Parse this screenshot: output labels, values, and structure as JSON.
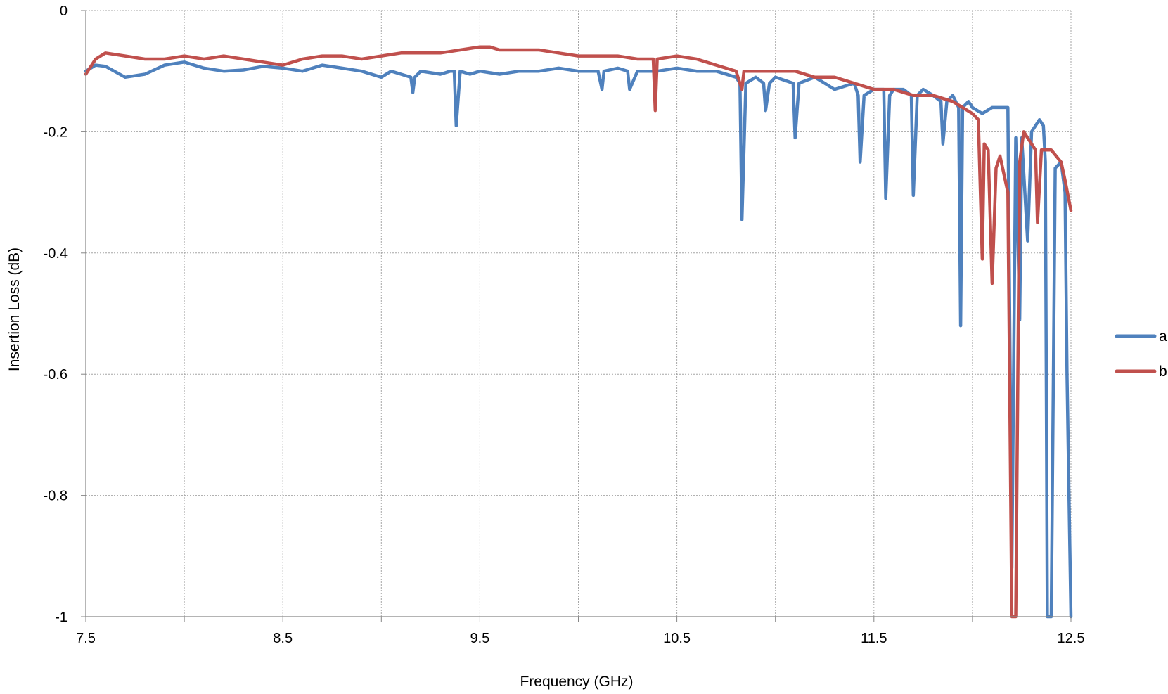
{
  "chart_data": {
    "type": "line",
    "title": "",
    "xlabel": "Frequency (GHz)",
    "ylabel": "Insertion Loss (dB)",
    "xlim": [
      7.5,
      12.5
    ],
    "ylim": [
      -1,
      0
    ],
    "x_ticks": [
      7.5,
      8.0,
      8.5,
      9.0,
      9.5,
      10.0,
      10.5,
      11.0,
      11.5,
      12.0,
      12.5
    ],
    "x_tick_labels": [
      "7.5",
      "",
      "8.5",
      "",
      "9.5",
      "",
      "10.5",
      "",
      "11.5",
      "",
      "12.5"
    ],
    "y_ticks": [
      0,
      -0.2,
      -0.4,
      -0.6,
      -0.8,
      -1
    ],
    "y_tick_labels": [
      "0",
      "-0.2",
      "-0.4",
      "-0.6",
      "-0.8",
      "-1"
    ],
    "grid": true,
    "legend_position": "right",
    "series": [
      {
        "name": "a",
        "color": "#4f81bd",
        "x": [
          7.5,
          7.55,
          7.6,
          7.7,
          7.8,
          7.9,
          8.0,
          8.1,
          8.2,
          8.3,
          8.4,
          8.5,
          8.6,
          8.7,
          8.8,
          8.9,
          9.0,
          9.05,
          9.1,
          9.15,
          9.16,
          9.17,
          9.2,
          9.3,
          9.35,
          9.37,
          9.38,
          9.4,
          9.45,
          9.5,
          9.6,
          9.7,
          9.8,
          9.9,
          10.0,
          10.1,
          10.12,
          10.13,
          10.2,
          10.25,
          10.26,
          10.3,
          10.4,
          10.5,
          10.6,
          10.7,
          10.8,
          10.82,
          10.83,
          10.85,
          10.9,
          10.94,
          10.95,
          10.97,
          11.0,
          11.09,
          11.1,
          11.12,
          11.2,
          11.25,
          11.3,
          11.4,
          11.42,
          11.43,
          11.45,
          11.5,
          11.55,
          11.56,
          11.58,
          11.6,
          11.65,
          11.69,
          11.7,
          11.72,
          11.75,
          11.8,
          11.84,
          11.85,
          11.87,
          11.9,
          11.93,
          11.94,
          11.95,
          11.98,
          12.0,
          12.05,
          12.1,
          12.15,
          12.18,
          12.2,
          12.22,
          12.24,
          12.25,
          12.28,
          12.3,
          12.34,
          12.36,
          12.37,
          12.38,
          12.4,
          12.42,
          12.45,
          12.47,
          12.48,
          12.5
        ],
        "y": [
          -0.1,
          -0.09,
          -0.092,
          -0.11,
          -0.105,
          -0.09,
          -0.085,
          -0.095,
          -0.1,
          -0.098,
          -0.092,
          -0.095,
          -0.1,
          -0.09,
          -0.095,
          -0.1,
          -0.11,
          -0.1,
          -0.105,
          -0.11,
          -0.135,
          -0.11,
          -0.1,
          -0.105,
          -0.1,
          -0.1,
          -0.19,
          -0.1,
          -0.105,
          -0.1,
          -0.105,
          -0.1,
          -0.1,
          -0.095,
          -0.1,
          -0.1,
          -0.13,
          -0.1,
          -0.095,
          -0.1,
          -0.13,
          -0.1,
          -0.1,
          -0.095,
          -0.1,
          -0.1,
          -0.11,
          -0.12,
          -0.345,
          -0.12,
          -0.11,
          -0.12,
          -0.165,
          -0.12,
          -0.11,
          -0.12,
          -0.21,
          -0.12,
          -0.11,
          -0.12,
          -0.13,
          -0.12,
          -0.14,
          -0.25,
          -0.14,
          -0.13,
          -0.13,
          -0.31,
          -0.14,
          -0.13,
          -0.13,
          -0.14,
          -0.305,
          -0.14,
          -0.13,
          -0.14,
          -0.15,
          -0.22,
          -0.15,
          -0.14,
          -0.16,
          -0.52,
          -0.16,
          -0.15,
          -0.16,
          -0.17,
          -0.16,
          -0.16,
          -0.16,
          -0.92,
          -0.21,
          -0.51,
          -0.21,
          -0.38,
          -0.2,
          -0.18,
          -0.19,
          -0.25,
          -1.0,
          -1.0,
          -0.26,
          -0.25,
          -0.3,
          -0.6,
          -1.0
        ]
      },
      {
        "name": "b",
        "color": "#c0504d",
        "x": [
          7.5,
          7.55,
          7.6,
          7.7,
          7.8,
          7.9,
          8.0,
          8.1,
          8.2,
          8.3,
          8.4,
          8.5,
          8.6,
          8.7,
          8.8,
          8.9,
          9.0,
          9.1,
          9.2,
          9.3,
          9.4,
          9.5,
          9.55,
          9.6,
          9.7,
          9.8,
          9.9,
          10.0,
          10.1,
          10.2,
          10.3,
          10.38,
          10.39,
          10.4,
          10.5,
          10.6,
          10.7,
          10.8,
          10.83,
          10.84,
          10.9,
          11.0,
          11.1,
          11.2,
          11.3,
          11.4,
          11.5,
          11.6,
          11.7,
          11.8,
          11.9,
          12.0,
          12.03,
          12.05,
          12.06,
          12.08,
          12.1,
          12.12,
          12.14,
          12.18,
          12.2,
          12.22,
          12.24,
          12.26,
          12.28,
          12.3,
          12.32,
          12.33,
          12.35,
          12.4,
          12.45,
          12.47,
          12.5
        ],
        "y": [
          -0.105,
          -0.08,
          -0.07,
          -0.075,
          -0.08,
          -0.08,
          -0.075,
          -0.08,
          -0.075,
          -0.08,
          -0.085,
          -0.09,
          -0.08,
          -0.075,
          -0.075,
          -0.08,
          -0.075,
          -0.07,
          -0.07,
          -0.07,
          -0.065,
          -0.06,
          -0.06,
          -0.065,
          -0.065,
          -0.065,
          -0.07,
          -0.075,
          -0.075,
          -0.075,
          -0.08,
          -0.08,
          -0.165,
          -0.08,
          -0.075,
          -0.08,
          -0.09,
          -0.1,
          -0.13,
          -0.1,
          -0.1,
          -0.1,
          -0.1,
          -0.11,
          -0.11,
          -0.12,
          -0.13,
          -0.13,
          -0.14,
          -0.14,
          -0.15,
          -0.17,
          -0.18,
          -0.41,
          -0.22,
          -0.23,
          -0.45,
          -0.26,
          -0.24,
          -0.3,
          -1.0,
          -1.0,
          -0.25,
          -0.2,
          -0.21,
          -0.22,
          -0.23,
          -0.35,
          -0.23,
          -0.23,
          -0.25,
          -0.28,
          -0.33
        ]
      }
    ]
  }
}
